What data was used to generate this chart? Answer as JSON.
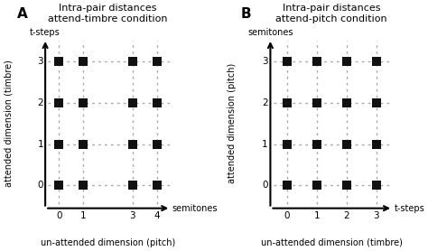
{
  "panel_A": {
    "title_line1": "Intra-pair distances",
    "title_line2": "attend-timbre condition",
    "xlabel": "un-attended dimension (pitch)",
    "ylabel": "attended dimension (timbre)",
    "xaxis_arrow_label": "semitones",
    "yaxis_arrow_label": "t-steps",
    "x_values": [
      0,
      1,
      3,
      4
    ],
    "y_values": [
      0,
      1,
      2,
      3
    ],
    "x_ticks": [
      0,
      1,
      3,
      4
    ],
    "y_ticks": [
      0,
      1,
      2,
      3
    ],
    "x_tick_labels": [
      "0",
      "1",
      "3",
      "4"
    ],
    "y_tick_labels": [
      "0",
      "1",
      "2",
      "3"
    ]
  },
  "panel_B": {
    "title_line1": "Intra-pair distances",
    "title_line2": "attend-pitch condition",
    "xlabel": "un-attended dimension (timbre)",
    "ylabel": "attended dimension (pitch)",
    "xaxis_arrow_label": "t-steps",
    "yaxis_arrow_label": "semitones",
    "x_values": [
      0,
      1,
      2,
      3
    ],
    "y_values": [
      0,
      1,
      2,
      3
    ],
    "x_ticks": [
      0,
      1,
      2,
      3
    ],
    "y_ticks": [
      0,
      1,
      2,
      3
    ],
    "x_tick_labels": [
      "0",
      "1",
      "2",
      "3"
    ],
    "y_tick_labels": [
      "0",
      "1",
      "2",
      "3"
    ]
  },
  "square_color": "#111111",
  "dot_color": "#aaaaaa",
  "label_A": "A",
  "label_B": "B",
  "bg_color": "#ffffff"
}
